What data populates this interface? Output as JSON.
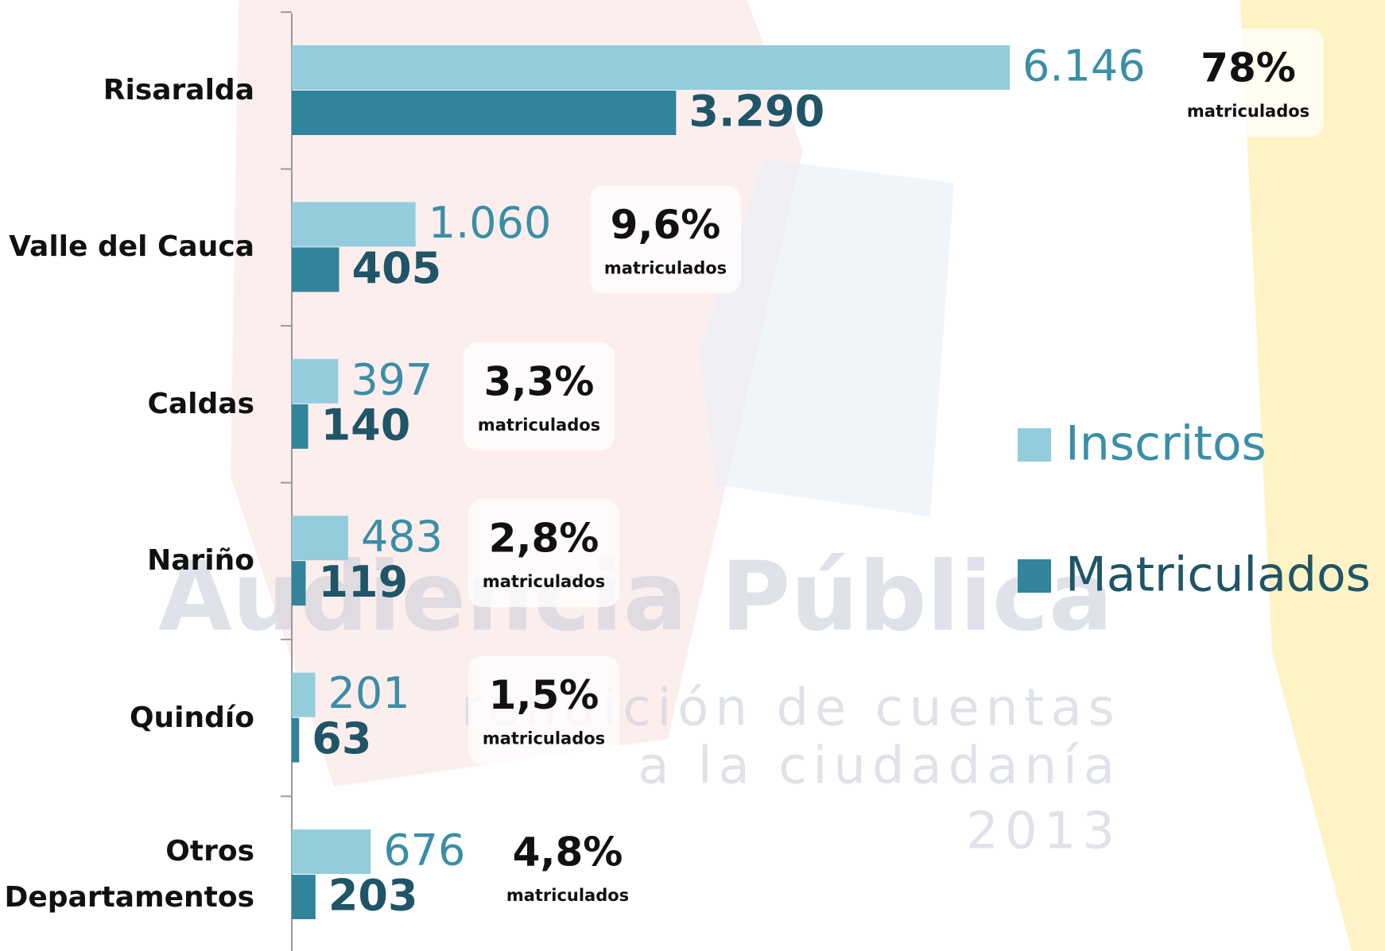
{
  "chart_data": {
    "type": "bar",
    "orientation": "horizontal",
    "categories": [
      "Risaralda",
      "Valle del Cauca",
      "Caldas",
      "Nariño",
      "Quindío",
      "Otros Departamentos"
    ],
    "series": [
      {
        "name": "Inscritos",
        "color": "#93cddd",
        "label_color": "#3a8ea7",
        "values": [
          6146,
          1060,
          397,
          483,
          201,
          676
        ],
        "value_labels": [
          "6.146",
          "1.060",
          "397",
          "483",
          "201",
          "676"
        ]
      },
      {
        "name": "Matriculados",
        "color": "#31849b",
        "label_color": "#1f5567",
        "values": [
          3290,
          405,
          140,
          119,
          63,
          203
        ],
        "value_labels": [
          "3.290",
          "405",
          "140",
          "119",
          "63",
          "203"
        ]
      }
    ],
    "annotations": [
      {
        "percent": "78%",
        "label": "matriculados"
      },
      {
        "percent": "9,6%",
        "label": "matriculados"
      },
      {
        "percent": "3,3%",
        "label": "matriculados"
      },
      {
        "percent": "2,8%",
        "label": "matriculados"
      },
      {
        "percent": "1,5%",
        "label": "matriculados"
      },
      {
        "percent": "4,8%",
        "label": "matriculados"
      }
    ],
    "xlim": [
      0,
      7000
    ],
    "watermark": [
      "Audiencia Pública",
      "rendición de cuentas",
      "a la ciudadanía",
      "2013"
    ]
  }
}
